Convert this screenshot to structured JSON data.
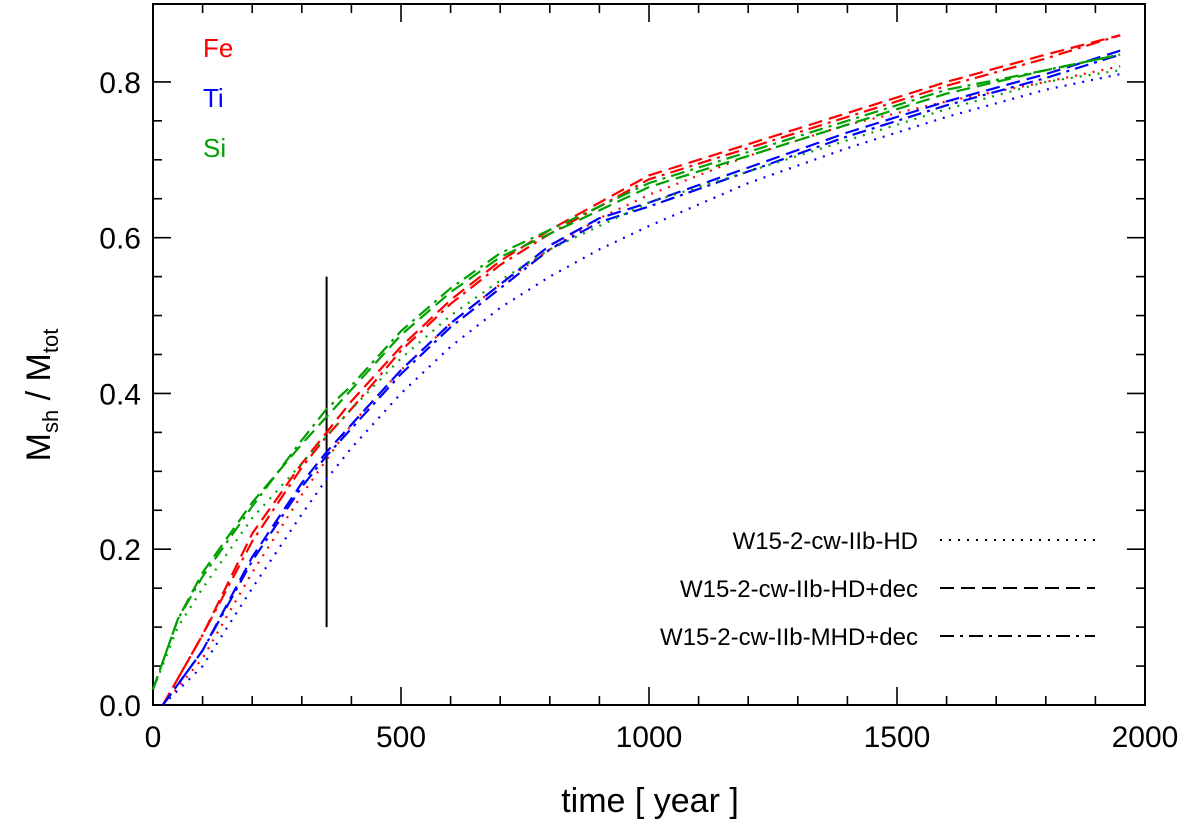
{
  "chart_data": {
    "type": "line",
    "title": "",
    "xlabel": "time [ year ]",
    "ylabel_main": "M",
    "ylabel_sub1": "sh",
    "ylabel_sep": " / M",
    "ylabel_sub2": "tot",
    "xlim": [
      0,
      2000
    ],
    "ylim": [
      0.0,
      0.9
    ],
    "xticks": [
      0,
      500,
      1000,
      1500,
      2000
    ],
    "xtick_labels": [
      "0",
      "500",
      "1000",
      "1500",
      "2000"
    ],
    "yticks": [
      0.0,
      0.2,
      0.4,
      0.6,
      0.8
    ],
    "ytick_labels": [
      "0.0",
      "0.2",
      "0.4",
      "0.6",
      "0.8"
    ],
    "vertical_marker": {
      "x": 350,
      "y_from": 0.1,
      "y_to": 0.55
    },
    "elements": [
      {
        "name": "Fe",
        "color": "#ff0000"
      },
      {
        "name": "Ti",
        "color": "#0000ff"
      },
      {
        "name": "Si",
        "color": "#00a000"
      }
    ],
    "models": [
      {
        "name": "W15-2-cw-IIb-HD",
        "style": "dotted"
      },
      {
        "name": "W15-2-cw-IIb-HD+dec",
        "style": "dashed"
      },
      {
        "name": "W15-2-cw-IIb-MHD+dec",
        "style": "dashdot"
      }
    ],
    "series": [
      {
        "element": "Fe",
        "model": "W15-2-cw-IIb-HD",
        "x": [
          20,
          100,
          200,
          300,
          350,
          400,
          500,
          600,
          700,
          800,
          900,
          1000,
          1200,
          1400,
          1600,
          1800,
          1950
        ],
        "y": [
          0.0,
          0.06,
          0.17,
          0.27,
          0.315,
          0.36,
          0.43,
          0.49,
          0.54,
          0.585,
          0.625,
          0.655,
          0.705,
          0.745,
          0.775,
          0.8,
          0.82
        ]
      },
      {
        "element": "Fe",
        "model": "W15-2-cw-IIb-HD+dec",
        "x": [
          20,
          100,
          200,
          300,
          350,
          400,
          500,
          600,
          700,
          800,
          900,
          1000,
          1200,
          1400,
          1600,
          1800,
          1950
        ],
        "y": [
          0.0,
          0.09,
          0.22,
          0.31,
          0.35,
          0.39,
          0.46,
          0.52,
          0.57,
          0.61,
          0.645,
          0.68,
          0.72,
          0.76,
          0.8,
          0.835,
          0.86
        ]
      },
      {
        "element": "Fe",
        "model": "W15-2-cw-IIb-MHD+dec",
        "x": [
          20,
          100,
          200,
          300,
          350,
          400,
          500,
          600,
          700,
          800,
          900,
          1000,
          1200,
          1400,
          1600,
          1800,
          1950
        ],
        "y": [
          0.0,
          0.09,
          0.21,
          0.305,
          0.345,
          0.38,
          0.455,
          0.515,
          0.565,
          0.605,
          0.64,
          0.675,
          0.715,
          0.755,
          0.795,
          0.83,
          0.86
        ]
      },
      {
        "element": "Ti",
        "model": "W15-2-cw-IIb-HD",
        "x": [
          20,
          100,
          200,
          300,
          350,
          400,
          500,
          600,
          700,
          800,
          900,
          1000,
          1200,
          1400,
          1600,
          1800,
          1950
        ],
        "y": [
          0.0,
          0.05,
          0.15,
          0.245,
          0.29,
          0.33,
          0.4,
          0.46,
          0.51,
          0.55,
          0.585,
          0.615,
          0.67,
          0.715,
          0.755,
          0.79,
          0.81
        ]
      },
      {
        "element": "Ti",
        "model": "W15-2-cw-IIb-HD+dec",
        "x": [
          20,
          100,
          200,
          300,
          350,
          400,
          500,
          600,
          700,
          800,
          900,
          1000,
          1200,
          1400,
          1600,
          1800,
          1950
        ],
        "y": [
          0.0,
          0.07,
          0.19,
          0.285,
          0.325,
          0.36,
          0.43,
          0.49,
          0.54,
          0.59,
          0.625,
          0.645,
          0.69,
          0.735,
          0.775,
          0.81,
          0.84
        ]
      },
      {
        "element": "Ti",
        "model": "W15-2-cw-IIb-MHD+dec",
        "x": [
          20,
          100,
          200,
          300,
          350,
          400,
          500,
          600,
          700,
          800,
          900,
          1000,
          1200,
          1400,
          1600,
          1800,
          1950
        ],
        "y": [
          0.0,
          0.07,
          0.185,
          0.28,
          0.32,
          0.355,
          0.425,
          0.485,
          0.535,
          0.585,
          0.62,
          0.64,
          0.685,
          0.73,
          0.77,
          0.805,
          0.835
        ]
      },
      {
        "element": "Si",
        "model": "W15-2-cw-IIb-HD",
        "x": [
          0,
          50,
          100,
          200,
          300,
          350,
          400,
          500,
          600,
          700,
          800,
          900,
          1000,
          1200,
          1400,
          1600,
          1800,
          1950
        ],
        "y": [
          0.02,
          0.1,
          0.15,
          0.24,
          0.31,
          0.345,
          0.38,
          0.445,
          0.5,
          0.545,
          0.585,
          0.615,
          0.645,
          0.685,
          0.725,
          0.765,
          0.8,
          0.815
        ]
      },
      {
        "element": "Si",
        "model": "W15-2-cw-IIb-HD+dec",
        "x": [
          0,
          50,
          100,
          200,
          300,
          350,
          400,
          500,
          600,
          700,
          800,
          900,
          1000,
          1200,
          1400,
          1600,
          1800,
          1950
        ],
        "y": [
          0.02,
          0.11,
          0.17,
          0.26,
          0.335,
          0.37,
          0.405,
          0.475,
          0.53,
          0.575,
          0.605,
          0.635,
          0.665,
          0.705,
          0.745,
          0.785,
          0.815,
          0.835
        ]
      },
      {
        "element": "Si",
        "model": "W15-2-cw-IIb-MHD+dec",
        "x": [
          0,
          50,
          100,
          200,
          300,
          350,
          400,
          500,
          600,
          700,
          800,
          900,
          1000,
          1200,
          1400,
          1600,
          1800,
          1950
        ],
        "y": [
          0.02,
          0.11,
          0.165,
          0.255,
          0.34,
          0.38,
          0.41,
          0.48,
          0.535,
          0.58,
          0.61,
          0.64,
          0.67,
          0.71,
          0.75,
          0.79,
          0.815,
          0.835
        ]
      }
    ]
  }
}
